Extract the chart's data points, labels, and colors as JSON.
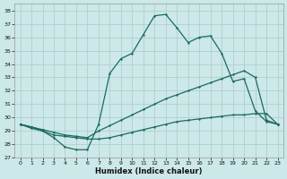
{
  "xlabel": "Humidex (Indice chaleur)",
  "background_color": "#cce8e8",
  "grid_color": "#b0d0cc",
  "line_color": "#1a6a60",
  "xlim": [
    -0.5,
    23.5
  ],
  "ylim": [
    27,
    38.5
  ],
  "xticks": [
    0,
    1,
    2,
    3,
    4,
    5,
    6,
    7,
    8,
    9,
    10,
    11,
    12,
    13,
    14,
    15,
    16,
    17,
    18,
    19,
    20,
    21,
    22,
    23
  ],
  "yticks": [
    27,
    28,
    29,
    30,
    31,
    32,
    33,
    34,
    35,
    36,
    37,
    38
  ],
  "line1_x": [
    0,
    1,
    2,
    3,
    4,
    5,
    6,
    7,
    8,
    9,
    10,
    11,
    12,
    13,
    14,
    15,
    16,
    17,
    18,
    19,
    20,
    21,
    22,
    23
  ],
  "line1_y": [
    29.5,
    29.2,
    29.0,
    28.5,
    27.8,
    27.6,
    27.6,
    29.5,
    33.3,
    34.4,
    34.8,
    36.2,
    37.6,
    37.7,
    36.7,
    35.6,
    36.0,
    36.1,
    34.8,
    32.7,
    32.9,
    30.5,
    29.7,
    29.5
  ],
  "line2_x": [
    0,
    1,
    2,
    3,
    4,
    5,
    6,
    7,
    8,
    9,
    10,
    11,
    12,
    13,
    14,
    15,
    16,
    17,
    18,
    19,
    20,
    21,
    22,
    23
  ],
  "line2_y": [
    29.5,
    29.3,
    29.1,
    28.9,
    28.7,
    28.6,
    28.5,
    29.0,
    29.4,
    29.8,
    30.2,
    30.6,
    31.0,
    31.4,
    31.7,
    32.0,
    32.3,
    32.6,
    32.9,
    33.2,
    33.5,
    33.0,
    29.8,
    29.5
  ],
  "line3_x": [
    0,
    1,
    2,
    3,
    4,
    5,
    6,
    7,
    8,
    9,
    10,
    11,
    12,
    13,
    14,
    15,
    16,
    17,
    18,
    19,
    20,
    21,
    22,
    23
  ],
  "line3_y": [
    29.5,
    29.3,
    29.0,
    28.7,
    28.6,
    28.5,
    28.4,
    28.4,
    28.5,
    28.7,
    28.9,
    29.1,
    29.3,
    29.5,
    29.7,
    29.8,
    29.9,
    30.0,
    30.1,
    30.2,
    30.2,
    30.3,
    30.3,
    29.5
  ]
}
